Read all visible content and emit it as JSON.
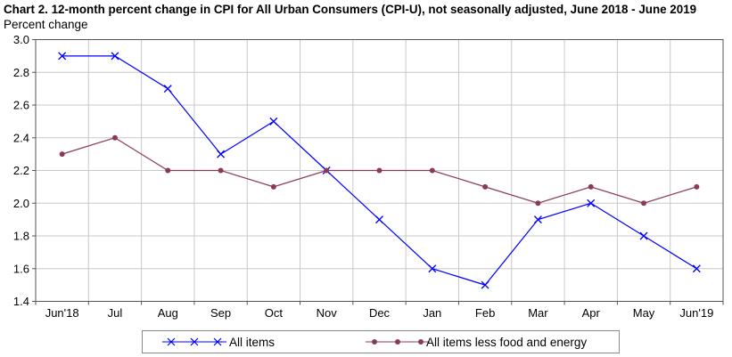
{
  "chart_data": {
    "type": "line",
    "title": "Chart 2. 12-month percent change in CPI for All Urban Consumers (CPI-U), not seasonally adjusted, June 2018 - June 2019",
    "ylabel": "Percent change",
    "xlabel": "",
    "categories": [
      "Jun'18",
      "Jul",
      "Aug",
      "Sep",
      "Oct",
      "Nov",
      "Dec",
      "Jan",
      "Feb",
      "Mar",
      "Apr",
      "May",
      "Jun'19"
    ],
    "ylim": [
      1.4,
      3.0
    ],
    "yticks": [
      "1.4",
      "1.6",
      "1.8",
      "2.0",
      "2.2",
      "2.4",
      "2.6",
      "2.8",
      "3.0"
    ],
    "grid": true,
    "legend_position": "bottom",
    "series": [
      {
        "name": "All items",
        "color": "#0000ff",
        "marker": "x",
        "values": [
          2.9,
          2.9,
          2.7,
          2.3,
          2.5,
          2.2,
          1.9,
          1.6,
          1.5,
          1.9,
          2.0,
          1.8,
          1.6
        ]
      },
      {
        "name": "All items less food and energy",
        "color": "#8b3a55",
        "marker": "circle",
        "values": [
          2.3,
          2.4,
          2.2,
          2.2,
          2.1,
          2.2,
          2.2,
          2.2,
          2.1,
          2.0,
          2.1,
          2.0,
          2.1
        ]
      }
    ]
  }
}
